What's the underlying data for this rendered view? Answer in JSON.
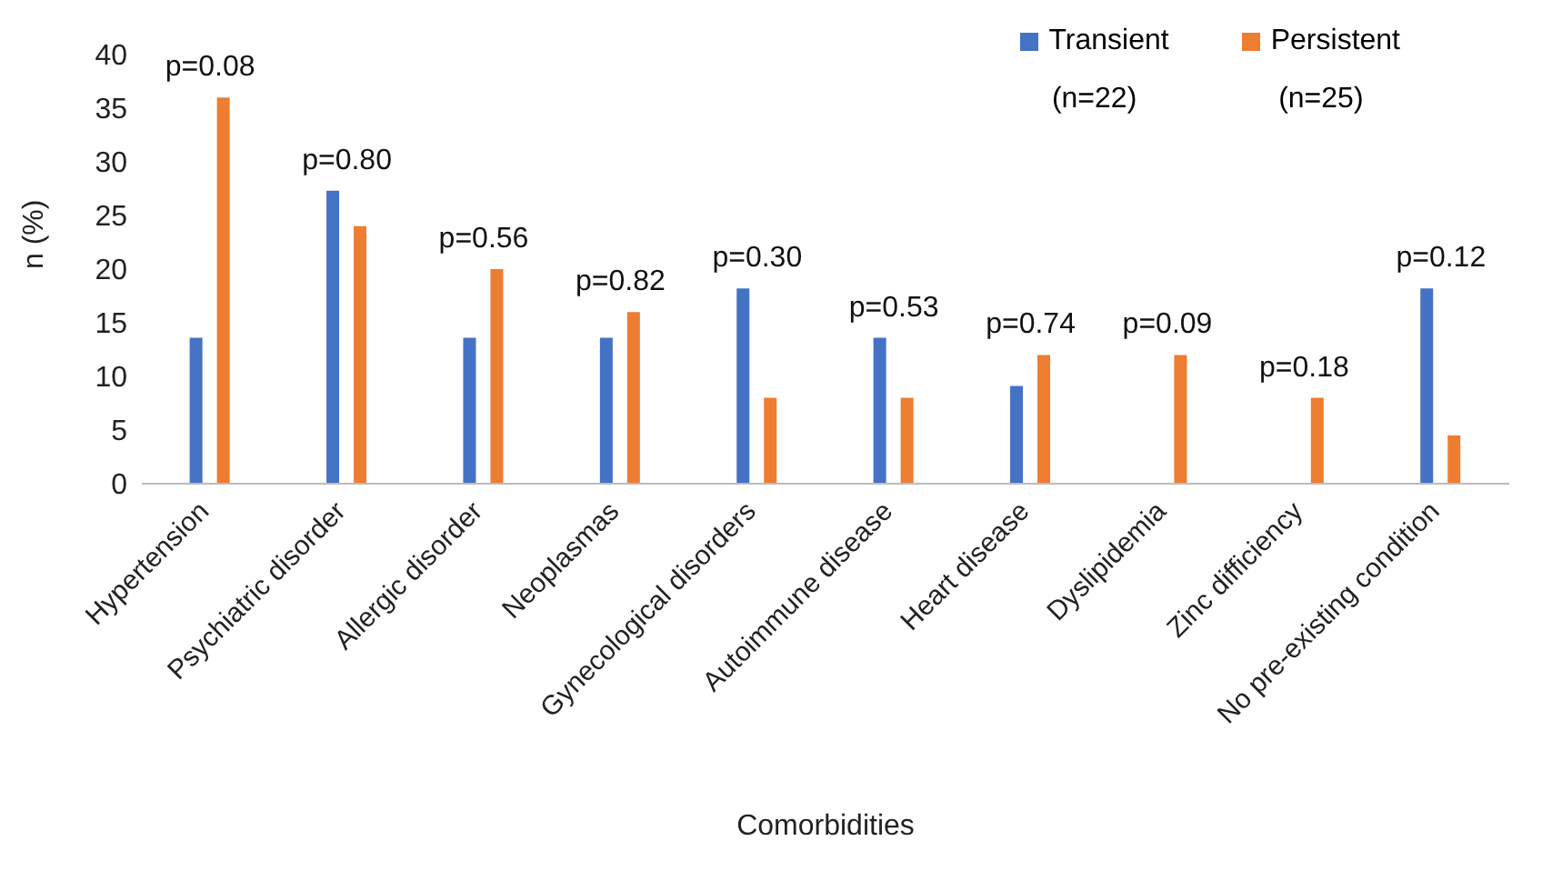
{
  "chart_data": {
    "type": "bar",
    "xlabel": "Comorbidities",
    "ylabel": "n (%)",
    "categories": [
      "Hypertension",
      "Psychiatric disorder",
      "Allergic disorder",
      "Neoplasmas",
      "Gynecological disorders",
      "Autoimmune disease",
      "Heart disease",
      "Dyslipidemia",
      "Zinc difficiency",
      "No pre-existing condition"
    ],
    "series": [
      {
        "name": "Transient",
        "color": "#4472c4",
        "values": [
          13.6,
          27.3,
          13.6,
          13.6,
          18.2,
          13.6,
          9.1,
          0,
          0,
          18.2
        ]
      },
      {
        "name": "Persistent",
        "color": "#ed7d31",
        "values": [
          36,
          24,
          20,
          16,
          8,
          8,
          12,
          12,
          8,
          4.5
        ]
      }
    ],
    "ylim": [
      0,
      40
    ],
    "yticks": [
      0,
      5,
      10,
      15,
      20,
      25,
      30,
      35,
      40
    ],
    "grid": false,
    "legend": "top right",
    "annotations": [
      "(n=22)",
      "(n=25)",
      "p=0.08",
      "p=0.80",
      "p=0.56",
      "p=0.82",
      "p=0.30",
      "p=0.53",
      "p=0.74",
      "p=0.09",
      "p=0.18",
      "p=0.12"
    ]
  }
}
